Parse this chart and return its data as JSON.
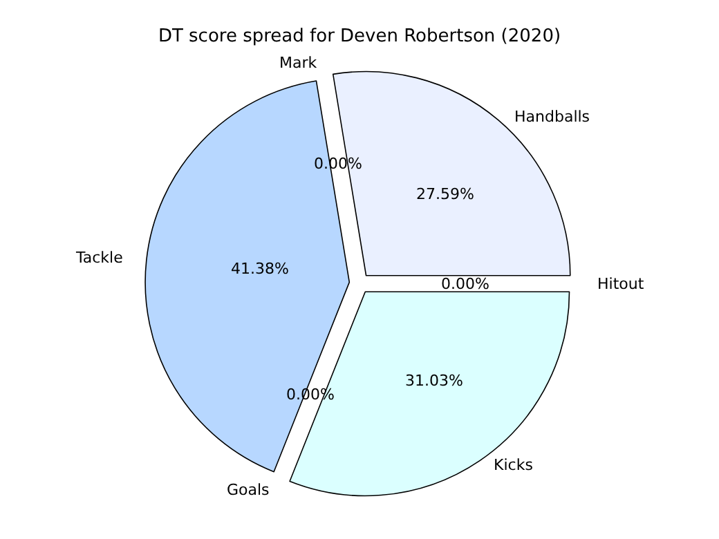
{
  "chart_data": {
    "type": "pie",
    "title": "DT score spread for Deven Robertson (2020)",
    "categories": [
      "Handballs",
      "Mark",
      "Tackle",
      "Goals",
      "Kicks",
      "Hitout"
    ],
    "values": [
      27.59,
      0,
      41.38,
      0,
      31.03,
      0
    ],
    "colors": [
      "#eaf0ff",
      null,
      "#b7d7ff",
      null,
      "#dbffff",
      null
    ],
    "value_labels": [
      "27.59%",
      "0.00%",
      "41.38%",
      "0.00%",
      "31.03%",
      "0.00%"
    ]
  }
}
